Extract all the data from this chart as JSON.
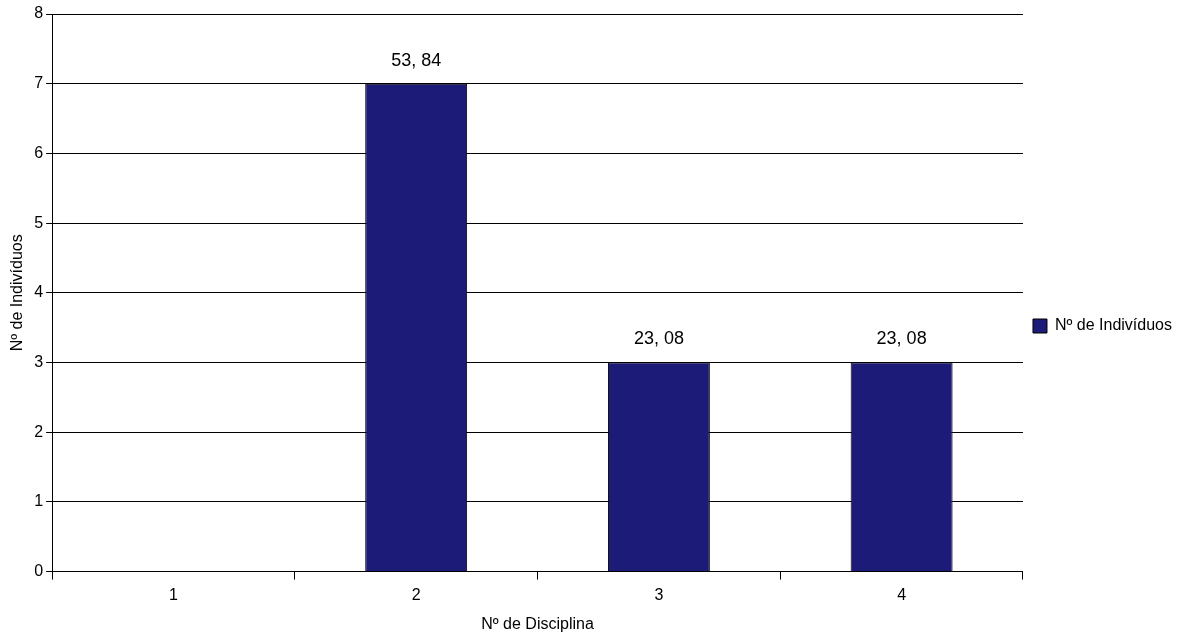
{
  "chart_data": {
    "type": "bar",
    "xlabel": "Nº de Disciplina",
    "ylabel": "Nº de Indivíduos",
    "categories": [
      "1",
      "2",
      "3",
      "4"
    ],
    "series": [
      {
        "name": "Nº de Indivíduos",
        "color": "#1c1c78",
        "values": [
          0,
          7,
          3,
          3
        ]
      }
    ],
    "annotations": [
      {
        "text": "53, 84",
        "x": "2",
        "y": 7
      },
      {
        "text": "23, 08",
        "x": "3",
        "y": 3
      },
      {
        "text": "23, 08",
        "x": "4",
        "y": 3
      }
    ],
    "ylim": [
      0,
      8
    ],
    "yticks": [
      0,
      1,
      2,
      3,
      4,
      5,
      6,
      7,
      8
    ],
    "grid": "y",
    "legend": "right"
  }
}
